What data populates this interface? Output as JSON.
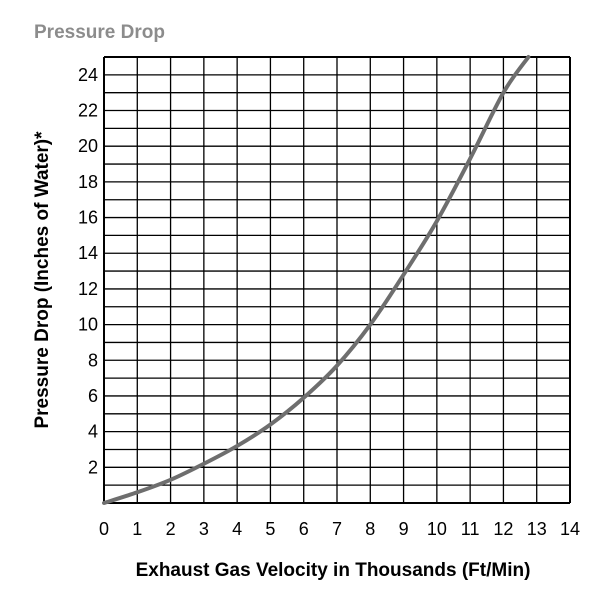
{
  "chart_data": {
    "type": "line",
    "title": "Pressure Drop",
    "xlabel": "Exhaust Gas Velocity in Thousands (Ft/Min)",
    "ylabel": "Pressure Drop (Inches of Water)*",
    "xlim": [
      0,
      14
    ],
    "ylim": [
      0,
      25
    ],
    "xticks": [
      "0",
      "1",
      "2",
      "3",
      "4",
      "5",
      "6",
      "7",
      "8",
      "9",
      "10",
      "11",
      "12",
      "13",
      "14"
    ],
    "yticks": [
      "2",
      "4",
      "6",
      "8",
      "10",
      "12",
      "14",
      "16",
      "18",
      "20",
      "22",
      "24"
    ],
    "grid": true,
    "series": [
      {
        "x": [
          0,
          1,
          2,
          3,
          4,
          5,
          6,
          7,
          8,
          9,
          10,
          11,
          12,
          12.75
        ],
        "y": [
          0,
          0.6,
          1.3,
          2.2,
          3.2,
          4.4,
          5.9,
          7.7,
          10.0,
          12.8,
          15.8,
          19.3,
          23.0,
          25.0
        ]
      }
    ],
    "colors": {
      "line": "#6e6e6e",
      "grid": "#000000"
    }
  }
}
